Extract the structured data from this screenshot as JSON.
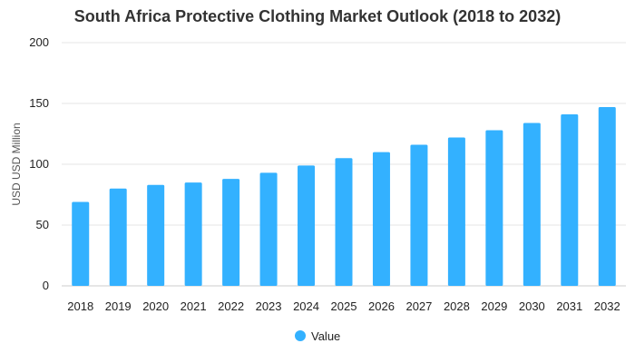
{
  "chart_data": {
    "type": "bar",
    "title": "South Africa Protective Clothing Market Outlook (2018 to 2032)",
    "xlabel": "",
    "ylabel": "USD USD Million",
    "categories": [
      "2018",
      "2019",
      "2020",
      "2021",
      "2022",
      "2023",
      "2024",
      "2025",
      "2026",
      "2027",
      "2028",
      "2029",
      "2030",
      "2031",
      "2032"
    ],
    "series": [
      {
        "name": "Value",
        "color": "#33b1ff",
        "values": [
          69,
          80,
          83,
          85,
          88,
          93,
          99,
          105,
          110,
          116,
          122,
          128,
          134,
          141,
          147
        ]
      }
    ],
    "ylim": [
      0,
      200
    ],
    "yticks": [
      "0",
      "50",
      "100",
      "150",
      "200"
    ],
    "grid": true,
    "legend_position": "bottom",
    "colors": {
      "gridline": "#e6e6e6",
      "axis_line": "#cccccc"
    }
  }
}
